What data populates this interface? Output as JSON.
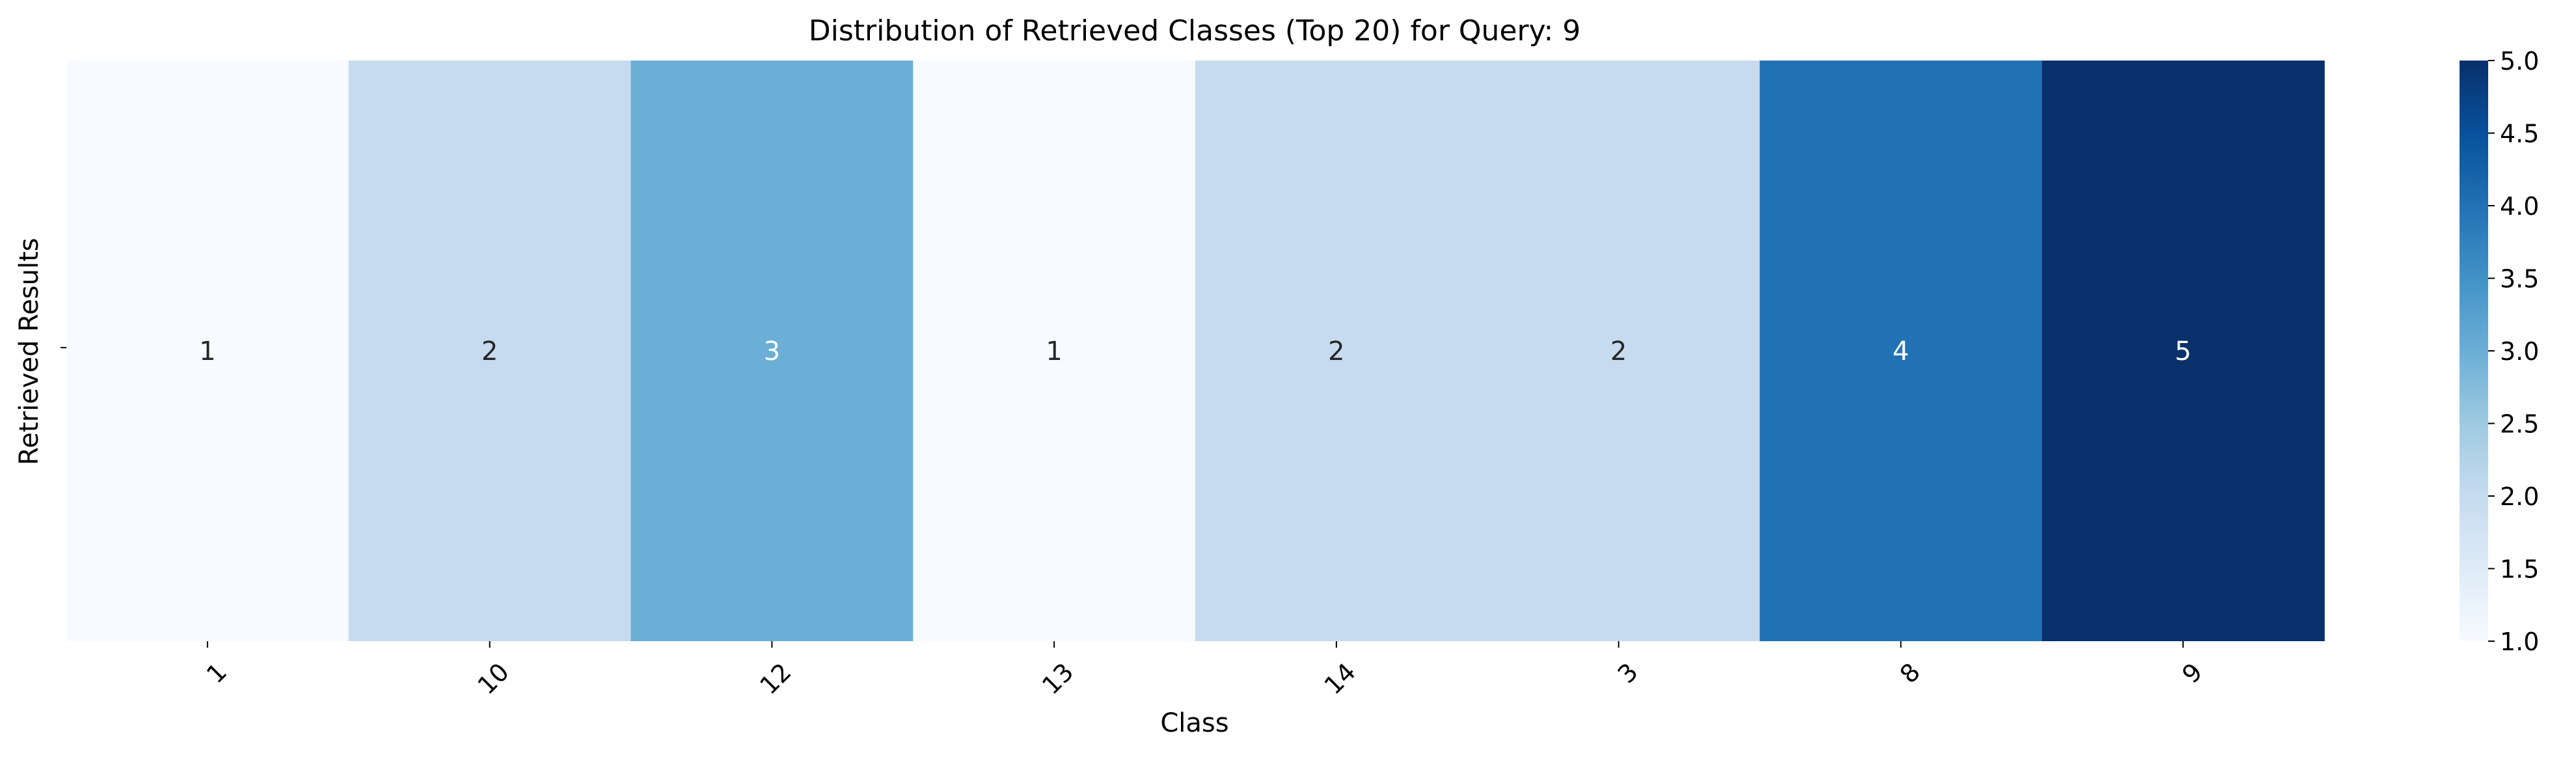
{
  "chart_data": {
    "type": "heatmap",
    "title": "Distribution of Retrieved Classes (Top 20) for Query: 9",
    "xlabel": "Class",
    "ylabel": "Retrieved Results",
    "categories": [
      "1",
      "10",
      "12",
      "13",
      "14",
      "3",
      "8",
      "9"
    ],
    "values": [
      1,
      2,
      3,
      1,
      2,
      2,
      4,
      5
    ],
    "colormap": "Blues",
    "colorbar": {
      "range": [
        1.0,
        5.0
      ],
      "ticks": [
        "1.0",
        "1.5",
        "2.0",
        "2.5",
        "3.0",
        "3.5",
        "4.0",
        "4.5",
        "5.0"
      ]
    },
    "colors": {
      "1": "#f7fbff",
      "2": "#c6dbef",
      "3": "#6baed6",
      "4": "#2171b5",
      "5": "#08306b"
    },
    "cell_labels": [
      "1",
      "2",
      "3",
      "1",
      "2",
      "2",
      "4",
      "5"
    ],
    "grid": false,
    "legend": "colorbar-right"
  }
}
